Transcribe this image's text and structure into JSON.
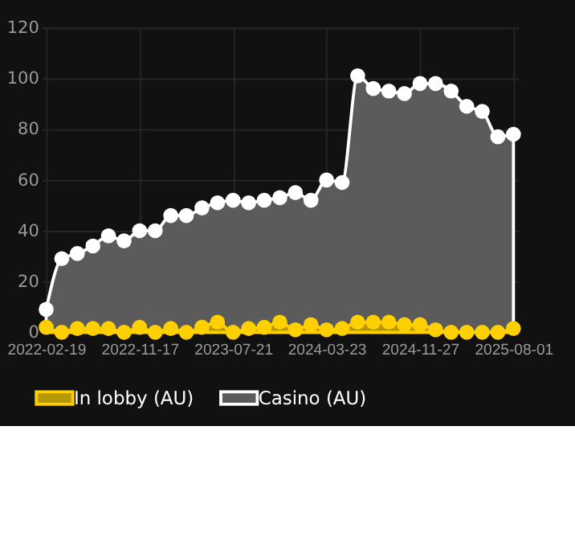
{
  "chart_data": {
    "type": "area",
    "categories": [
      "2022-02-19",
      null,
      null,
      null,
      null,
      null,
      "2022-11-17",
      null,
      null,
      null,
      null,
      null,
      "2023-07-21",
      null,
      null,
      null,
      null,
      null,
      "2024-03-23",
      null,
      null,
      null,
      null,
      null,
      "2024-11-27",
      null,
      null,
      null,
      null,
      null,
      "2025-08-01"
    ],
    "series": [
      {
        "name": "In lobby (AU)",
        "color": "#ffd000",
        "values": [
          2,
          0,
          1.5,
          1.5,
          1.5,
          0,
          2,
          0,
          1.5,
          0,
          2,
          4,
          0,
          1.5,
          2,
          4,
          1,
          3,
          1,
          1.5,
          4,
          4,
          4,
          3,
          3,
          1,
          0,
          0,
          0,
          0,
          1.5
        ]
      },
      {
        "name": "Casino (AU)",
        "color": "#ffffff",
        "values": [
          9,
          29,
          31,
          34,
          38,
          36,
          40,
          40,
          46,
          46,
          49,
          51,
          52,
          51,
          52,
          53,
          55,
          52,
          60,
          59,
          101,
          96,
          95,
          94,
          98,
          98,
          95,
          89,
          87,
          77,
          78
        ]
      }
    ],
    "ylim": [
      0,
      120
    ],
    "yticks": [
      0,
      20,
      40,
      60,
      80,
      100,
      120
    ],
    "grid": true,
    "legend": "bottom",
    "marker": "circle"
  }
}
